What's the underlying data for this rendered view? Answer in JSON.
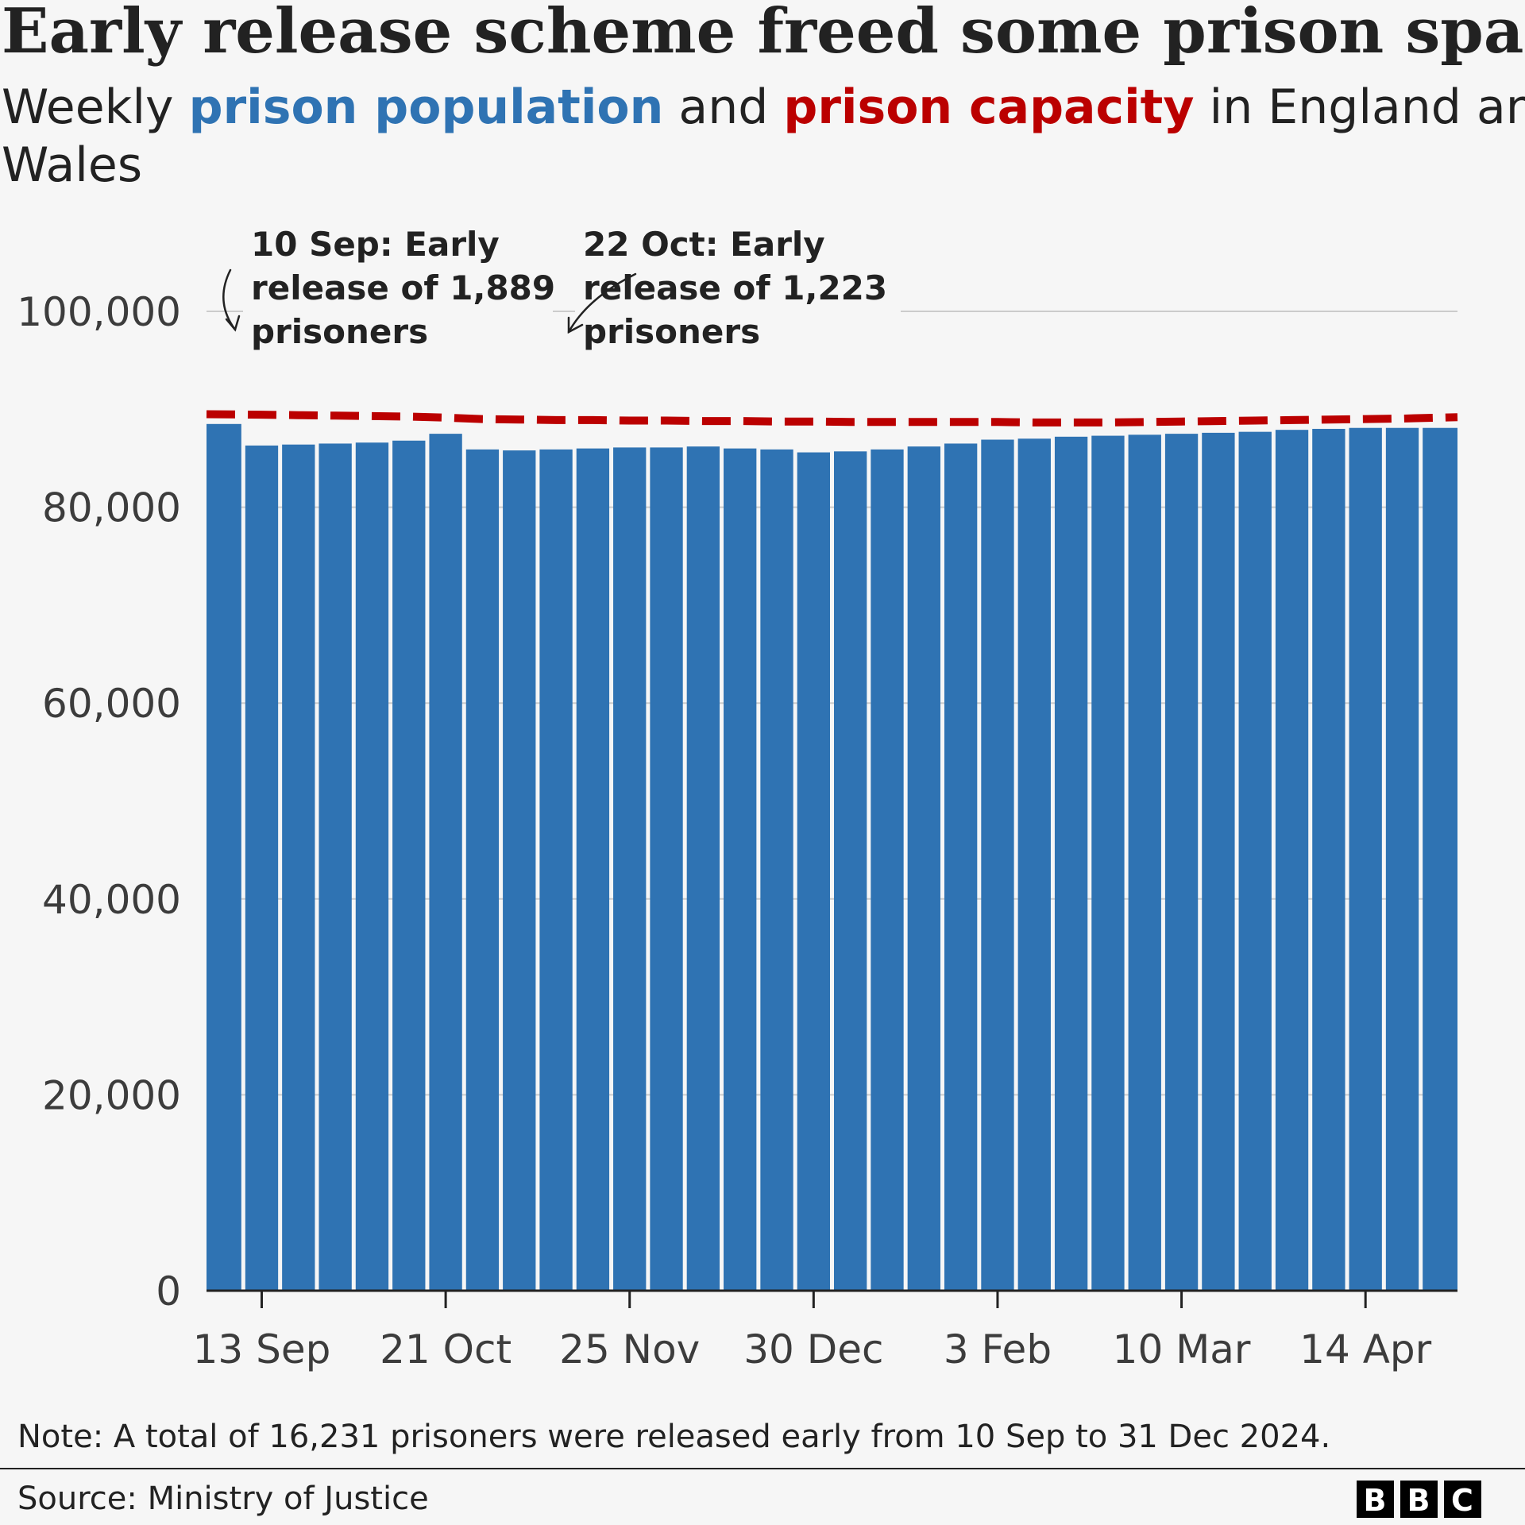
{
  "title": "Early release scheme freed some prison space",
  "subtitle": {
    "prefix": "Weekly ",
    "population_label": "prison population",
    "middle": " and ",
    "capacity_label": "prison capacity",
    "suffix_line1": " in England and",
    "suffix_line2": "Wales"
  },
  "note": "Note: A total of 16,231 prisoners were released early from 10 Sep to 31 Dec 2024.",
  "source": "Source: Ministry of Justice",
  "logo": [
    "B",
    "B",
    "C"
  ],
  "colors": {
    "population": "#2f73b3",
    "capacity": "#bb0000",
    "grid": "#cccccc",
    "axis": "#222222"
  },
  "chart_data": {
    "type": "bar",
    "ylim": [
      0,
      100000
    ],
    "yticks": [
      0,
      20000,
      40000,
      60000,
      80000,
      100000
    ],
    "ytick_labels": [
      "0",
      "20,000",
      "40,000",
      "60,000",
      "80,000",
      "100,000"
    ],
    "xtick_labels": [
      "13 Sep",
      "21 Oct",
      "25 Nov",
      "30 Dec",
      "3 Feb",
      "10 Mar",
      "14 Apr"
    ],
    "xtick_bar_positions": [
      1.5,
      6.5,
      11.5,
      16.5,
      21.5,
      26.5,
      31.5
    ],
    "series": [
      {
        "name": "prison population",
        "kind": "bar",
        "values": [
          88500,
          86300,
          86400,
          86500,
          86600,
          86800,
          87500,
          85900,
          85800,
          85900,
          86000,
          86100,
          86100,
          86200,
          86000,
          85900,
          85600,
          85700,
          85900,
          86200,
          86500,
          86900,
          87000,
          87200,
          87300,
          87400,
          87500,
          87600,
          87700,
          87900,
          88000,
          88100,
          88100,
          88100
        ]
      },
      {
        "name": "prison capacity",
        "kind": "dashed-line",
        "values": [
          89500,
          89450,
          89400,
          89350,
          89300,
          89250,
          89150,
          89000,
          88950,
          88900,
          88900,
          88850,
          88850,
          88800,
          88800,
          88750,
          88750,
          88700,
          88700,
          88700,
          88700,
          88700,
          88650,
          88650,
          88650,
          88700,
          88750,
          88800,
          88850,
          88900,
          88950,
          89000,
          89050,
          89200
        ]
      }
    ],
    "annotations": [
      {
        "lines": [
          "10 Sep: Early",
          "release of 1,889",
          "prisoners"
        ],
        "bar_index": 0
      },
      {
        "lines": [
          "22 Oct: Early",
          "release of 1,223",
          "prisoners"
        ],
        "bar_index": 7
      }
    ]
  }
}
